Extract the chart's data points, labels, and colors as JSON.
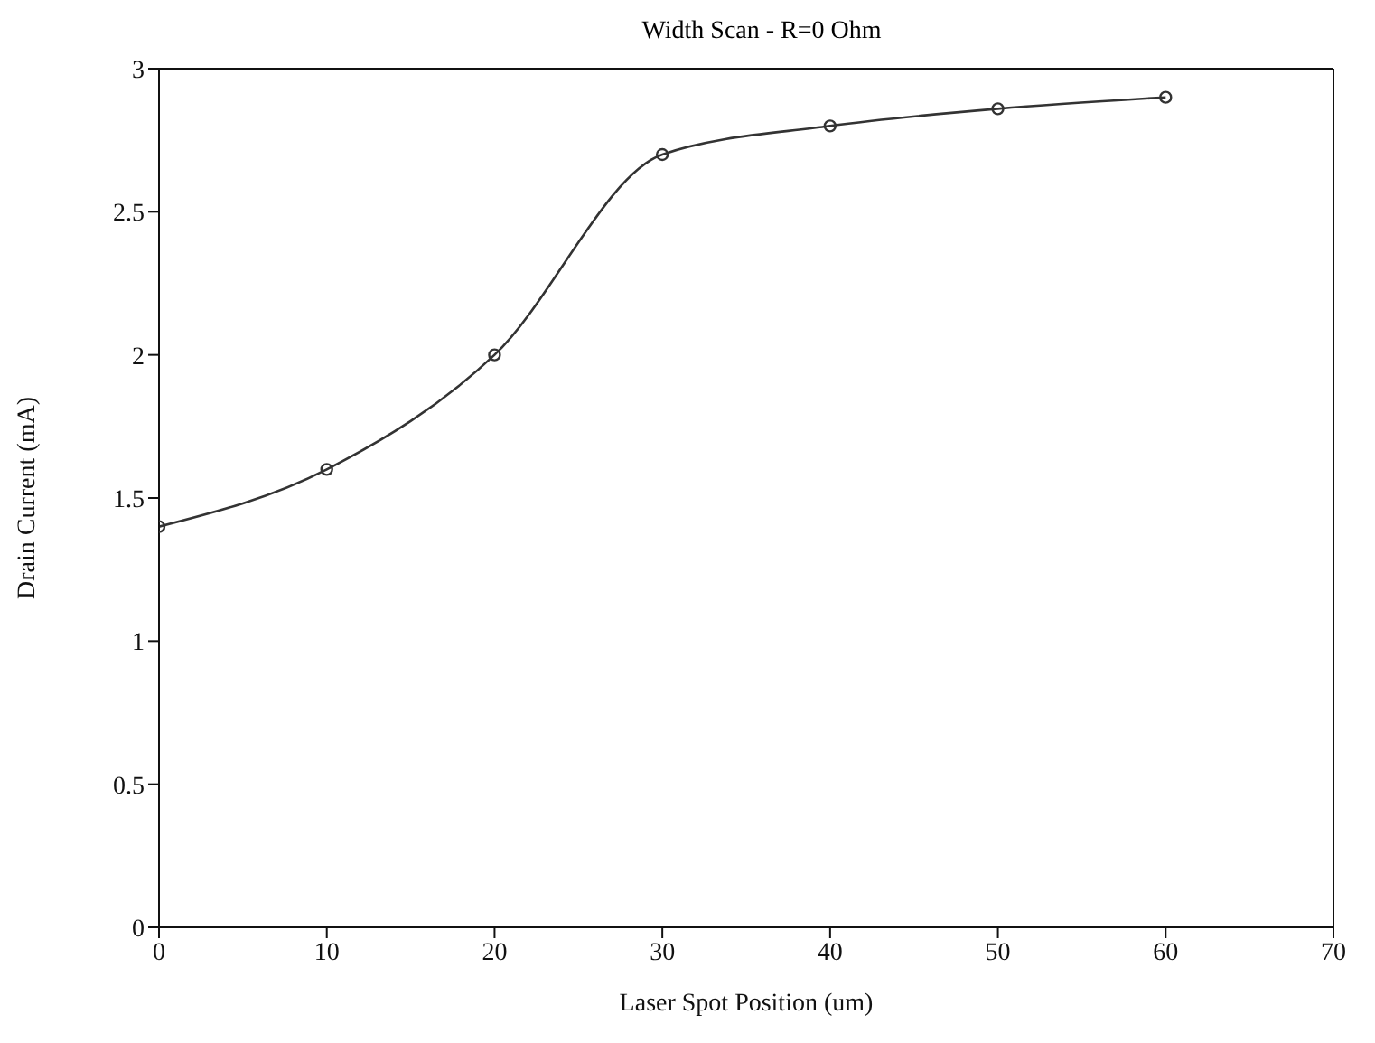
{
  "chart_data": {
    "type": "line",
    "title": "Width Scan - R=0 Ohm",
    "xlabel": "Laser Spot Position (um)",
    "ylabel": "Drain Current (mA)",
    "x": [
      0,
      10,
      20,
      30,
      40,
      50,
      60
    ],
    "series": [
      {
        "color": "#333333",
        "values": [
          1.4,
          1.6,
          2.0,
          2.7,
          2.8,
          2.86,
          2.9
        ]
      }
    ],
    "xlim": [
      0,
      70
    ],
    "xticks": [
      0,
      10,
      20,
      30,
      40,
      50,
      60,
      70
    ],
    "ylim": [
      0,
      3
    ],
    "yticks": [
      0,
      0.5,
      1,
      1.5,
      2,
      2.5,
      3
    ],
    "grid": false,
    "legend": false,
    "marker": "circle",
    "line_style": "solid"
  }
}
